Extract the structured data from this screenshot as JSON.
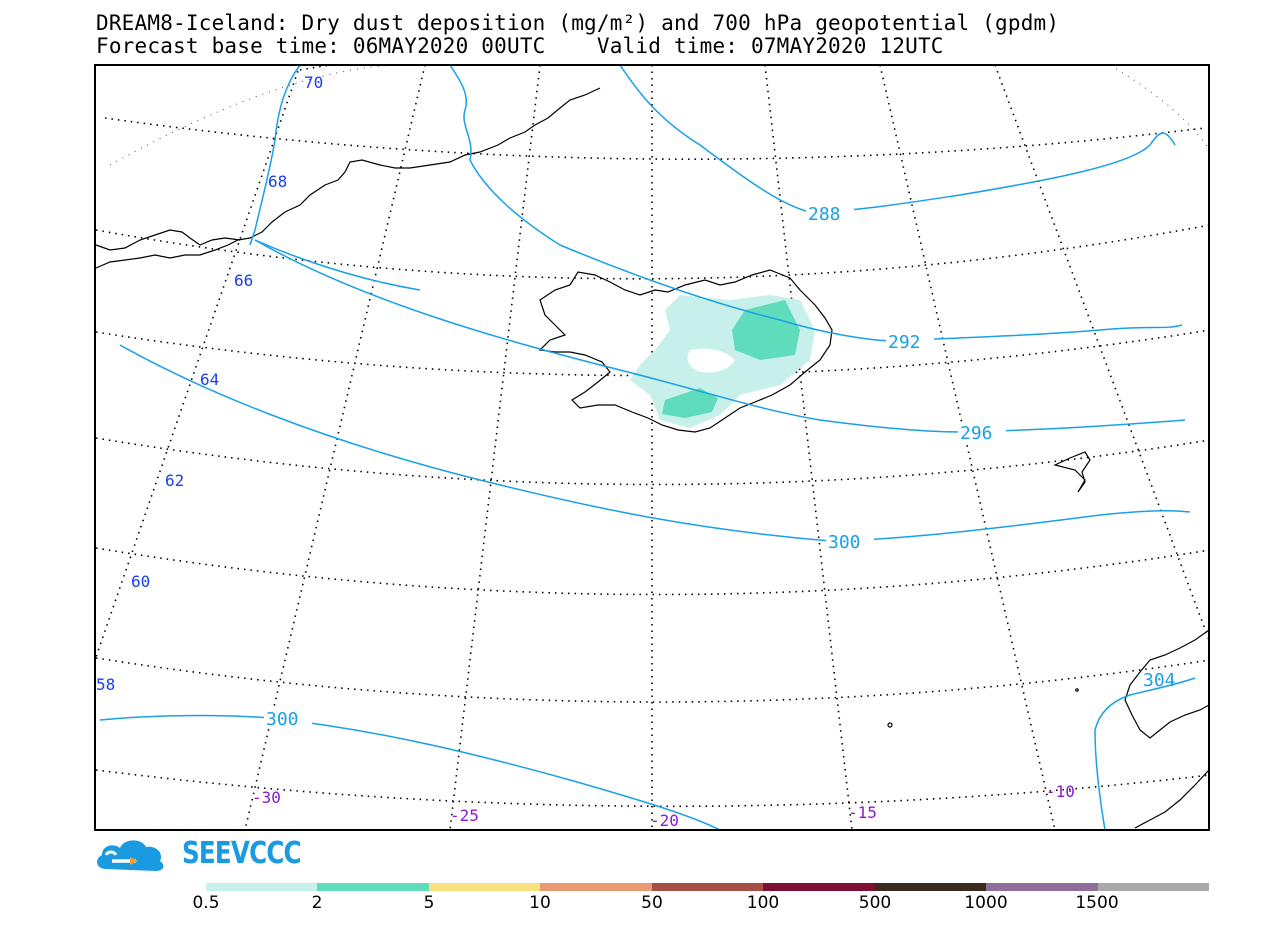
{
  "title": {
    "line1": "DREAM8-Iceland: Dry dust deposition (mg/m²) and 700 hPa geopotential (gpdm)",
    "line2": "Forecast base time: 06MAY2020 00UTC    Valid time: 07MAY2020 12UTC"
  },
  "lat_labels": [
    "70",
    "68",
    "66",
    "64",
    "62",
    "60",
    "58"
  ],
  "lon_labels": [
    "-30",
    "-25",
    "-20",
    "-15",
    "-10"
  ],
  "contour_labels": [
    "288",
    "292",
    "296",
    "300",
    "300",
    "304"
  ],
  "logo": {
    "text": "SEEVCCC",
    "icon": "cloud-logo-icon"
  },
  "legend": {
    "labels": [
      "0.5",
      "2",
      "5",
      "10",
      "50",
      "100",
      "500",
      "1000",
      "1500"
    ],
    "colors": [
      "#c8f0ea",
      "#5fdcbb",
      "#f7e27f",
      "#e89a72",
      "#a84e48",
      "#7c0f33",
      "#3b2a1b",
      "#8f6e9b",
      "#a9a9a9"
    ]
  },
  "colors": {
    "contour": "#19a0e8",
    "lat_label": "#1a3ff0",
    "lon_label": "#8a1ccf",
    "dust_light": "#c8f0ea",
    "dust_medium": "#5fdcbb"
  }
}
